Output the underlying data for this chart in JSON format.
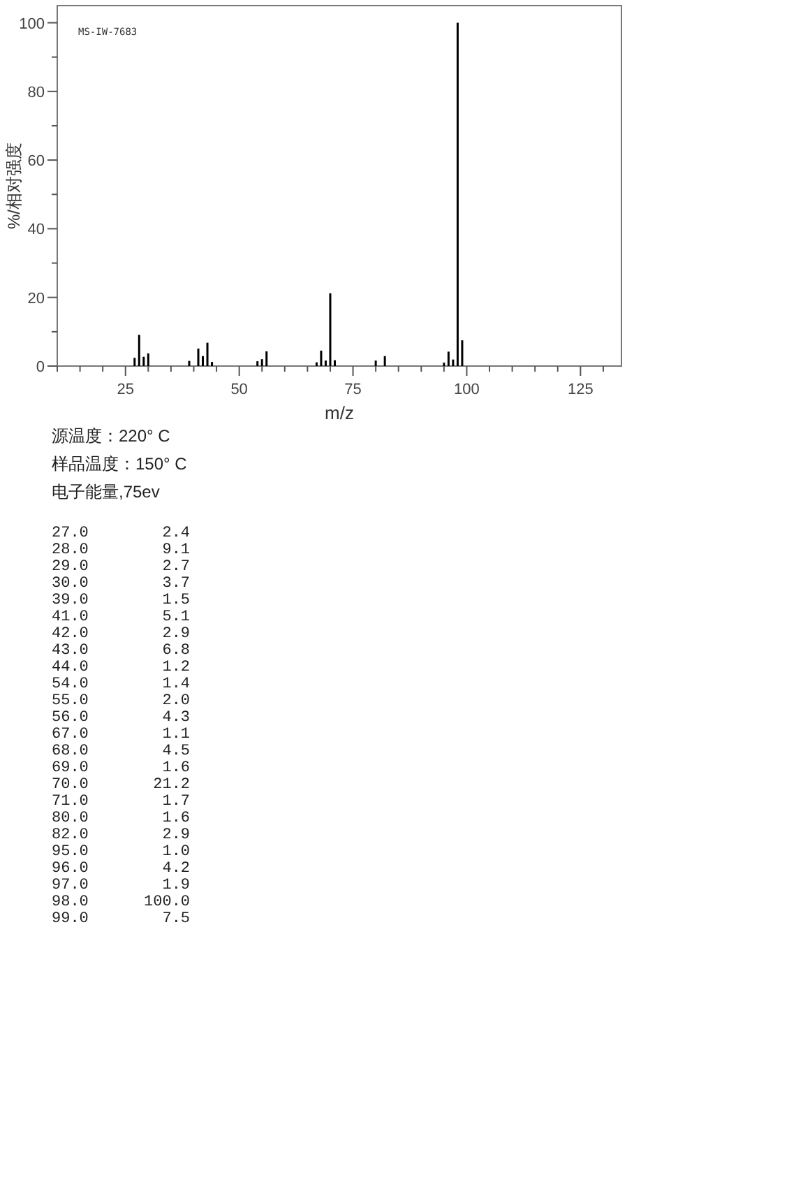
{
  "chart_data": [
    {
      "type": "bar",
      "xlabel": "m/z",
      "ylabel": "%/相对强度",
      "annotations": [
        "MS-IW-7683",
        "源温度：220° C",
        "样品温度：150° C",
        "电子能量,75ev"
      ],
      "x": [
        27,
        28,
        29,
        30,
        39,
        41,
        42,
        43,
        44,
        54,
        55,
        56,
        67,
        68,
        69,
        70,
        71,
        80,
        82,
        95,
        96,
        97,
        98,
        99
      ],
      "values": [
        2.4,
        9.1,
        2.7,
        3.7,
        1.5,
        5.1,
        2.9,
        6.8,
        1.2,
        1.4,
        2.0,
        4.3,
        1.1,
        4.5,
        1.6,
        21.2,
        1.7,
        1.6,
        2.9,
        1.0,
        4.2,
        1.9,
        100.0,
        7.5
      ],
      "color": "#000000",
      "xlim": [
        10,
        134
      ],
      "ylim": [
        0,
        105
      ],
      "xticks": [
        {
          "value": 10,
          "label": null
        },
        {
          "value": 15,
          "label": null
        },
        {
          "value": 20,
          "label": null
        },
        25,
        {
          "value": 30,
          "label": null
        },
        {
          "value": 35,
          "label": null
        },
        {
          "value": 40,
          "label": null
        },
        {
          "value": 45,
          "label": null
        },
        50,
        {
          "value": 55,
          "label": null
        },
        {
          "value": 60,
          "label": null
        },
        {
          "value": 65,
          "label": null
        },
        {
          "value": 70,
          "label": null
        },
        75,
        {
          "value": 80,
          "label": null
        },
        {
          "value": 85,
          "label": null
        },
        {
          "value": 90,
          "label": null
        },
        {
          "value": 95,
          "label": null
        },
        100,
        {
          "value": 105,
          "label": null
        },
        {
          "value": 110,
          "label": null
        },
        {
          "value": 115,
          "label": null
        },
        {
          "value": 120,
          "label": null
        },
        125,
        {
          "value": 130,
          "label": null
        }
      ],
      "yticks": [
        0,
        {
          "value": 10,
          "label": null
        },
        20,
        {
          "value": 30,
          "label": null
        },
        40,
        {
          "value": 50,
          "label": null
        },
        60,
        {
          "value": 70,
          "label": null
        },
        80,
        {
          "value": 90,
          "label": null
        },
        100
      ],
      "grid": false
    },
    {
      "type": "other",
      "annotations": [
        "27.0        2.4",
        "28.0        9.1",
        "29.0        2.7",
        "30.0        3.7",
        "39.0        1.5",
        "41.0        5.1",
        "42.0        2.9",
        "43.0        6.8",
        "44.0        1.2",
        "54.0        1.4",
        "55.0        2.0",
        "56.0        4.3",
        "67.0        1.1",
        "68.0        4.5",
        "69.0        1.6",
        "70.0       21.2",
        "71.0        1.7",
        "80.0        1.6",
        "82.0        2.9",
        "95.0        1.0",
        "96.0        4.2",
        "97.0        1.9",
        "98.0      100.0",
        "99.0        7.5"
      ]
    }
  ]
}
